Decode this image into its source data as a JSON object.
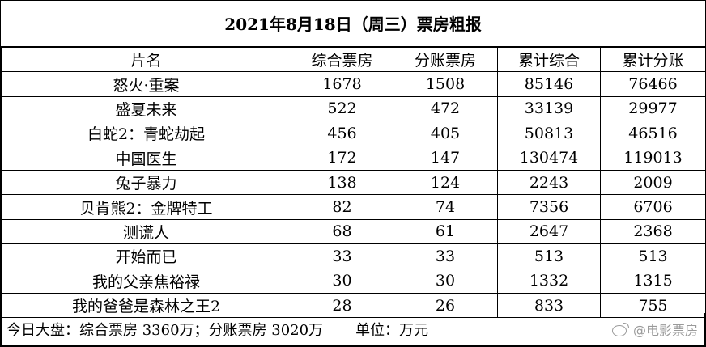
{
  "title": "2021年8月18日（周三）票房粗报",
  "headers": [
    "片名",
    "综合票房",
    "分账票房",
    "累计综合",
    "累计分账"
  ],
  "rows": [
    [
      "怒火·重案",
      "1678",
      "1508",
      "85146",
      "76466"
    ],
    [
      "盛夏未来",
      "522",
      "472",
      "33139",
      "29977"
    ],
    [
      "白蛇2：青蛇劫起",
      "456",
      "405",
      "50813",
      "46516"
    ],
    [
      "中国医生",
      "172",
      "147",
      "130474",
      "119013"
    ],
    [
      "兔子暴力",
      "138",
      "124",
      "2243",
      "2009"
    ],
    [
      "贝肯熊2：金牌特工",
      "82",
      "74",
      "7356",
      "6706"
    ],
    [
      "测谎人",
      "68",
      "61",
      "2647",
      "2368"
    ],
    [
      "开始而已",
      "33",
      "33",
      "513",
      "513"
    ],
    [
      "我的父亲焦裕禄",
      "30",
      "30",
      "1332",
      "1315"
    ],
    [
      "我的爸爸是森林之王2",
      "28",
      "26",
      "833",
      "755"
    ]
  ],
  "footer": {
    "summary": "今日大盘：综合票房 3360万；分账票房 3020万",
    "unit": "单位：万元"
  },
  "watermark": {
    "icon": "weibo-icon",
    "text": "@电影票房"
  }
}
